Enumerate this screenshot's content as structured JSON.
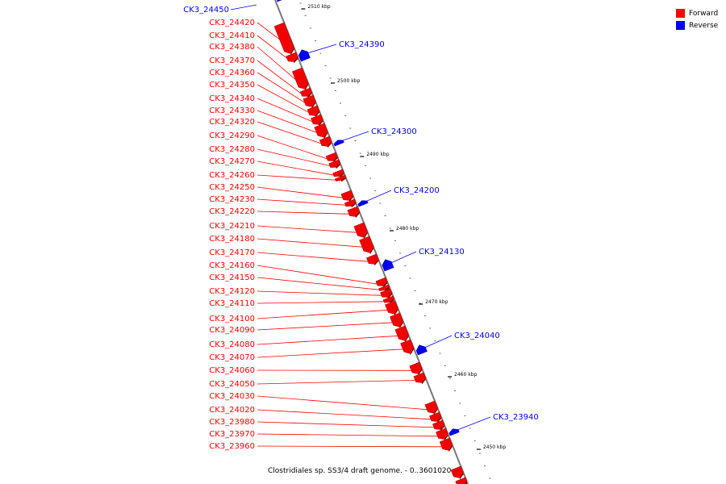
{
  "legend": {
    "forward_label": "Forward",
    "reverse_label": "Reverse",
    "forward_color": "#ff0000",
    "reverse_color": "#0000ff"
  },
  "caption": "Clostridiales sp. SS3/4 draft genome. - 0..3601020",
  "scale_labels": [
    "2510 kbp",
    "2500 kbp",
    "2490 kbp",
    "2480 kbp",
    "2470 kbp",
    "2460 kbp",
    "2450 kbp"
  ],
  "forward_genes": [
    "CK3_24420",
    "CK3_24410",
    "CK3_24380",
    "CK3_24370",
    "CK3_24360",
    "CK3_24350",
    "CK3_24340",
    "CK3_24330",
    "CK3_24320",
    "CK3_24290",
    "CK3_24280",
    "CK3_24270",
    "CK3_24260",
    "CK3_24250",
    "CK3_24230",
    "CK3_24220",
    "CK3_24210",
    "CK3_24180",
    "CK3_24170",
    "CK3_24160",
    "CK3_24150",
    "CK3_24120",
    "CK3_24110",
    "CK3_24100",
    "CK3_24090",
    "CK3_24080",
    "CK3_24070",
    "CK3_24060",
    "CK3_24050",
    "CK3_24030",
    "CK3_24020",
    "CK3_23980",
    "CK3_23970",
    "CK3_23960"
  ],
  "reverse_genes": [
    "CK3_24450",
    "CK3_24390",
    "CK3_24300",
    "CK3_24200",
    "CK3_24130",
    "CK3_24040",
    "CK3_23940"
  ]
}
